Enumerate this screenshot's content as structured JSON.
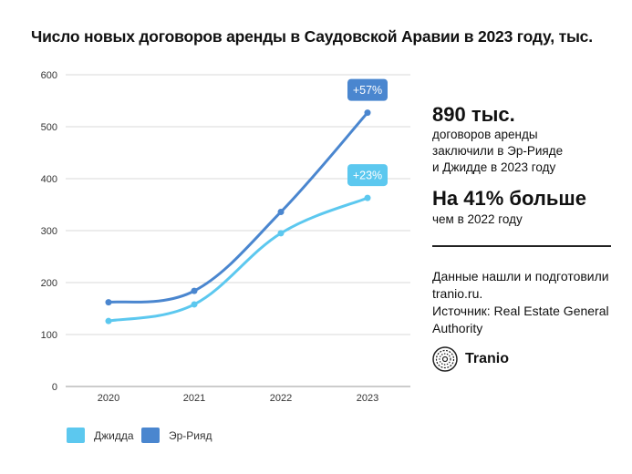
{
  "title": "Число новых договоров аренды в Саудовской Аравии в 2023 году, тыс.",
  "colors": {
    "jeddah": "#5cc8ef",
    "riyadh": "#4a86cf",
    "grid": "#d9d9d9"
  },
  "chart_data": {
    "type": "line",
    "title": "Число новых договоров аренды в Саудовской Аравии в 2023 году, тыс.",
    "categories": [
      "2020",
      "2021",
      "2022",
      "2023"
    ],
    "yticks": [
      "0",
      "100",
      "200",
      "300",
      "400",
      "500",
      "600"
    ],
    "ylim": [
      0,
      600
    ],
    "series": [
      {
        "name": "Джидда",
        "values": [
          126,
          158,
          295,
          363
        ],
        "label": "+23%"
      },
      {
        "name": "Эр-Рияд",
        "values": [
          162,
          184,
          336,
          527
        ],
        "label": "+57%"
      }
    ]
  },
  "stats": {
    "total_value": "890 тыс.",
    "total_desc_lines": [
      "договоров аренды",
      "заключили в Эр-Рияде",
      "и Джидде в 2023 году"
    ],
    "growth_value": "На 41% больше",
    "growth_desc": "чем в 2022 году"
  },
  "note_lines": [
    "Данные нашли и подготовили",
    "tranio.ru.",
    "Источник: Real Estate General",
    "Authority"
  ],
  "logo": {
    "text": "Tranio",
    "icon": "tranio-logo-icon"
  },
  "legend": {
    "jeddah": "Джидда",
    "riyadh": "Эр-Рияд"
  }
}
